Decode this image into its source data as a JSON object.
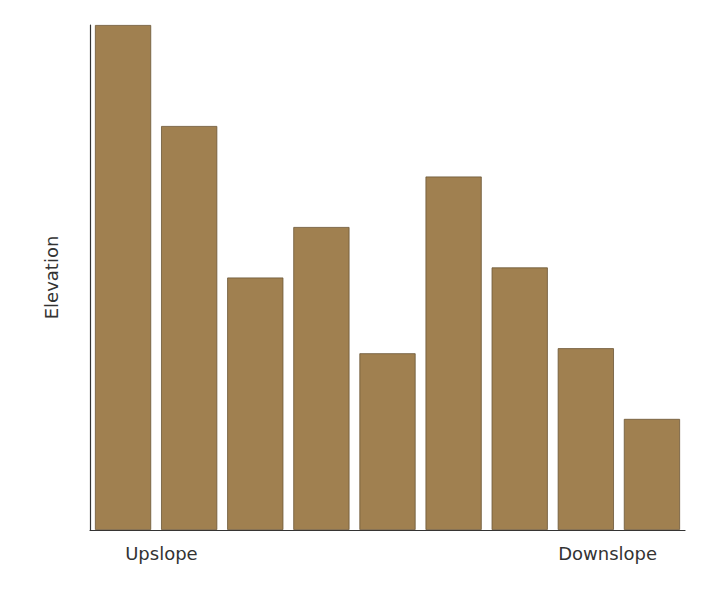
{
  "chart_data": {
    "type": "bar",
    "categories": [
      null,
      null,
      null,
      null,
      null,
      null,
      null,
      null,
      null
    ],
    "values": [
      10,
      8,
      5,
      6,
      3.5,
      7,
      5.2,
      3.6,
      2.2
    ],
    "color": "#A08050",
    "ylabel": "Elevation",
    "annotations": [
      "Upslope",
      "Downslope"
    ],
    "ylim": [
      0,
      10
    ],
    "grid": false,
    "tick_labels": false
  }
}
